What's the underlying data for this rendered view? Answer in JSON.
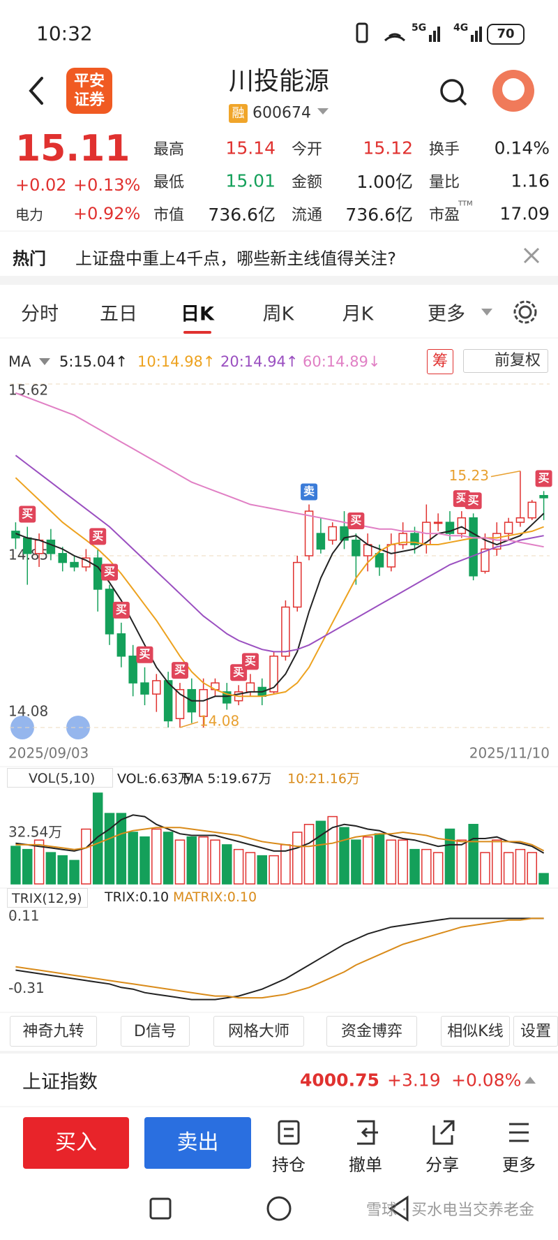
{
  "status_bar": {
    "time": "10:32",
    "signal_5g": "5G",
    "signal_4g": "4G",
    "battery": "70"
  },
  "header": {
    "logo_line1": "平安",
    "logo_line2": "证券",
    "title": "川投能源",
    "tag": "融",
    "code": "600674"
  },
  "quote": {
    "price": "15.11",
    "change": "+0.02",
    "change_pct": "+0.13%",
    "sector": "电力",
    "sector_change": "+0.92%",
    "fields": [
      {
        "label": "最高",
        "value": "15.14",
        "color": "#e0312f"
      },
      {
        "label": "今开",
        "value": "15.12",
        "color": "#e0312f"
      },
      {
        "label": "换手",
        "value": "0.14%"
      },
      {
        "label": "最低",
        "value": "15.01",
        "color": "#14a05a"
      },
      {
        "label": "金额",
        "value": "1.00亿"
      },
      {
        "label": "量比",
        "value": "1.16"
      },
      {
        "label": "市值",
        "value": "736.6亿"
      },
      {
        "label": "流通",
        "value": "736.6亿"
      },
      {
        "label": "市盈",
        "sup": "TTM",
        "value": "17.09"
      }
    ]
  },
  "hot": {
    "tag": "热门",
    "text": "上证盘中重上4千点，哪些新主线值得关注?"
  },
  "tabs": {
    "items": [
      "分时",
      "五日",
      "日K",
      "周K",
      "月K",
      "更多"
    ],
    "active": 2
  },
  "chart_data": [
    {
      "type": "candlestick",
      "legend_title": "MA",
      "chip_button": "筹",
      "adjust_button": "前复权",
      "categories": [
        "2025/09/03",
        null,
        null,
        null,
        null,
        null,
        null,
        null,
        null,
        null,
        null,
        null,
        null,
        null,
        null,
        null,
        null,
        null,
        null,
        null,
        null,
        null,
        null,
        null,
        null,
        null,
        null,
        null,
        null,
        null,
        null,
        null,
        null,
        null,
        null,
        null,
        null,
        null,
        null,
        null,
        null,
        null,
        null,
        null,
        null,
        "2025/11/10"
      ],
      "open": [
        14.96,
        14.93,
        14.86,
        14.92,
        14.86,
        14.82,
        14.8,
        14.84,
        14.7,
        14.5,
        14.4,
        14.28,
        14.23,
        14.29,
        14.12,
        14.25,
        14.13,
        14.25,
        14.24,
        14.2,
        14.24,
        14.26,
        14.24,
        14.4,
        14.62,
        14.85,
        14.95,
        14.92,
        14.98,
        14.92,
        14.85,
        14.86,
        14.8,
        14.9,
        14.95,
        14.9,
        15.0,
        15.0,
        14.95,
        15.02,
        14.78,
        14.88,
        14.95,
        15.0,
        15.02,
        15.12
      ],
      "close": [
        14.93,
        14.86,
        14.92,
        14.86,
        14.82,
        14.8,
        14.84,
        14.7,
        14.5,
        14.4,
        14.28,
        14.23,
        14.29,
        14.11,
        14.25,
        14.15,
        14.25,
        14.28,
        14.19,
        14.24,
        14.28,
        14.22,
        14.4,
        14.62,
        14.82,
        15.05,
        14.88,
        14.98,
        14.92,
        14.85,
        14.9,
        14.8,
        14.9,
        14.95,
        14.9,
        15.0,
        15.0,
        14.95,
        15.02,
        14.76,
        14.88,
        14.95,
        15.0,
        15.02,
        15.09,
        15.11
      ],
      "high": [
        15.0,
        14.98,
        14.95,
        14.97,
        14.89,
        14.85,
        14.88,
        14.88,
        14.72,
        14.55,
        14.45,
        14.35,
        14.32,
        14.33,
        14.28,
        14.3,
        14.3,
        14.3,
        14.28,
        14.27,
        14.32,
        14.3,
        14.42,
        14.65,
        14.85,
        15.08,
        15.02,
        15.0,
        15.05,
        14.95,
        14.95,
        14.9,
        14.95,
        15.0,
        14.98,
        15.08,
        15.04,
        15.05,
        15.05,
        15.04,
        14.95,
        15.0,
        15.02,
        15.23,
        15.1,
        15.14
      ],
      "low": [
        14.88,
        14.72,
        14.8,
        14.83,
        14.78,
        14.78,
        14.78,
        14.6,
        14.45,
        14.35,
        14.22,
        14.18,
        14.15,
        14.08,
        14.08,
        14.1,
        14.08,
        14.22,
        14.16,
        14.18,
        14.22,
        14.18,
        14.23,
        14.38,
        14.6,
        14.83,
        14.86,
        14.9,
        14.88,
        14.72,
        14.78,
        14.76,
        14.78,
        14.88,
        14.86,
        14.86,
        14.96,
        14.92,
        14.93,
        14.74,
        14.77,
        14.85,
        14.92,
        14.98,
        15.01,
        15.01
      ],
      "up_color": "#e0312f",
      "down_color": "#14a05a",
      "ylim": [
        14.08,
        15.62
      ],
      "yticks": [
        15.62,
        14.85,
        14.08
      ],
      "grid": true,
      "series": [
        {
          "name": "5:15.04↑",
          "color": "#222222",
          "values": [
            14.95,
            14.93,
            14.92,
            14.9,
            14.88,
            14.85,
            14.83,
            14.8,
            14.73,
            14.65,
            14.55,
            14.45,
            14.35,
            14.28,
            14.23,
            14.2,
            14.2,
            14.22,
            14.22,
            14.23,
            14.24,
            14.24,
            14.26,
            14.32,
            14.42,
            14.6,
            14.75,
            14.86,
            14.93,
            14.94,
            14.9,
            14.88,
            14.86,
            14.87,
            14.88,
            14.91,
            14.95,
            14.96,
            14.98,
            14.95,
            14.92,
            14.9,
            14.92,
            14.94,
            14.99,
            15.04
          ]
        },
        {
          "name": "10:14.98↑",
          "color": "#eda21f",
          "values": [
            15.2,
            15.15,
            15.1,
            15.05,
            15.0,
            14.96,
            14.92,
            14.88,
            14.83,
            14.77,
            14.7,
            14.63,
            14.56,
            14.48,
            14.4,
            14.33,
            14.28,
            14.25,
            14.23,
            14.22,
            14.22,
            14.22,
            14.23,
            14.24,
            14.28,
            14.35,
            14.45,
            14.55,
            14.65,
            14.75,
            14.82,
            14.87,
            14.9,
            14.91,
            14.91,
            14.9,
            14.9,
            14.91,
            14.92,
            14.93,
            14.93,
            14.93,
            14.94,
            14.95,
            14.96,
            14.98
          ]
        },
        {
          "name": "20:14.94↑",
          "color": "#9a4fc0",
          "values": [
            15.3,
            15.26,
            15.22,
            15.18,
            15.14,
            15.1,
            15.06,
            15.02,
            14.98,
            14.93,
            14.88,
            14.83,
            14.78,
            14.73,
            14.68,
            14.63,
            14.58,
            14.54,
            14.5,
            14.47,
            14.45,
            14.43,
            14.42,
            14.42,
            14.43,
            14.45,
            14.48,
            14.51,
            14.54,
            14.57,
            14.6,
            14.63,
            14.66,
            14.69,
            14.72,
            14.75,
            14.78,
            14.81,
            14.83,
            14.85,
            14.87,
            14.89,
            14.9,
            14.92,
            14.93,
            14.94
          ]
        },
        {
          "name": "60:14.89↓",
          "color": "#e07fc4",
          "values": [
            15.58,
            15.56,
            15.54,
            15.52,
            15.5,
            15.48,
            15.45,
            15.42,
            15.39,
            15.36,
            15.33,
            15.3,
            15.27,
            15.24,
            15.21,
            15.18,
            15.16,
            15.14,
            15.12,
            15.1,
            15.08,
            15.07,
            15.06,
            15.05,
            15.04,
            15.03,
            15.02,
            15.01,
            15.0,
            14.99,
            14.98,
            14.97,
            14.97,
            14.96,
            14.96,
            14.95,
            14.95,
            14.94,
            14.94,
            14.93,
            14.93,
            14.92,
            14.92,
            14.91,
            14.9,
            14.89
          ]
        }
      ],
      "signals": [
        {
          "index": 1,
          "label": "买",
          "color": "#e0455a"
        },
        {
          "index": 7,
          "label": "买",
          "color": "#e0455a"
        },
        {
          "index": 8,
          "label": "买",
          "color": "#e0455a"
        },
        {
          "index": 9,
          "label": "买",
          "color": "#e0455a"
        },
        {
          "index": 11,
          "label": "买",
          "color": "#e0455a"
        },
        {
          "index": 14,
          "label": "买",
          "color": "#e0455a"
        },
        {
          "index": 19,
          "label": "买",
          "color": "#e0455a"
        },
        {
          "index": 20,
          "label": "买",
          "color": "#e0455a"
        },
        {
          "index": 25,
          "label": "卖",
          "color": "#3a7bd8"
        },
        {
          "index": 29,
          "label": "买",
          "color": "#e0455a"
        },
        {
          "index": 38,
          "label": "买",
          "color": "#e0455a"
        },
        {
          "index": 39,
          "label": "买",
          "color": "#e0455a"
        },
        {
          "index": 45,
          "label": "买",
          "color": "#e0455a"
        }
      ],
      "annotations": [
        {
          "index": 43,
          "text": "15.23",
          "side": "left",
          "color": "#e8a030"
        },
        {
          "index": 14,
          "text": "14.08",
          "side": "right",
          "color": "#e8a030"
        }
      ]
    },
    {
      "type": "bar",
      "title": "VOL(5,10)",
      "current_label": "VOL:6.63万",
      "values": [
        24,
        22,
        28,
        20,
        18,
        15,
        35,
        58,
        45,
        45,
        33,
        30,
        35,
        33,
        28,
        30,
        30,
        28,
        25,
        22,
        20,
        18,
        18,
        25,
        33,
        38,
        40,
        43,
        36,
        28,
        30,
        32,
        28,
        28,
        22,
        22,
        20,
        35,
        28,
        38,
        20,
        28,
        20,
        22,
        20,
        6.63
      ],
      "ylim": [
        0,
        59.3
      ],
      "yticks": [
        {
          "value": 32.54,
          "label": "32.54万"
        }
      ],
      "series": [
        {
          "name": "MA 5:19.67万",
          "color": "#222222",
          "values": [
            26,
            25,
            24,
            23,
            22,
            21,
            23,
            30,
            35,
            41,
            44,
            43,
            38,
            35,
            32,
            31,
            31,
            31,
            29,
            27,
            25,
            23,
            21,
            21,
            23,
            26,
            31,
            36,
            38,
            37,
            35,
            34,
            31,
            29,
            28,
            26,
            24,
            25,
            25,
            29,
            29,
            30,
            27,
            26,
            24,
            19.67
          ]
        },
        {
          "name": "10:21.16万",
          "color": "#d98b1a",
          "values": [
            25,
            25,
            25,
            24,
            23,
            22,
            23,
            26,
            29,
            32,
            34,
            35,
            36,
            36,
            36,
            35,
            34,
            33,
            32,
            31,
            29,
            27,
            26,
            25,
            24,
            24,
            25,
            26,
            28,
            30,
            31,
            32,
            32,
            33,
            32,
            31,
            29,
            28,
            27,
            27,
            27,
            27,
            27,
            27,
            25,
            21.16
          ]
        }
      ]
    },
    {
      "type": "line",
      "title": "TRIX(12,9)",
      "ylim": [
        -0.4,
        0.15
      ],
      "yticks": [
        0.11,
        -0.31
      ],
      "series": [
        {
          "name": "TRIX:0.10",
          "color": "#222222",
          "values": [
            -0.2,
            -0.21,
            -0.22,
            -0.23,
            -0.24,
            -0.25,
            -0.26,
            -0.27,
            -0.28,
            -0.3,
            -0.31,
            -0.33,
            -0.34,
            -0.35,
            -0.36,
            -0.37,
            -0.37,
            -0.37,
            -0.36,
            -0.35,
            -0.33,
            -0.31,
            -0.28,
            -0.25,
            -0.21,
            -0.17,
            -0.13,
            -0.09,
            -0.05,
            -0.02,
            0.01,
            0.03,
            0.05,
            0.06,
            0.07,
            0.08,
            0.09,
            0.1,
            0.1,
            0.1,
            0.1,
            0.1,
            0.1,
            0.1,
            0.1,
            0.1
          ]
        },
        {
          "name": "MATRIX:0.10",
          "color": "#d98b1a",
          "values": [
            -0.18,
            -0.19,
            -0.2,
            -0.21,
            -0.22,
            -0.23,
            -0.24,
            -0.25,
            -0.26,
            -0.27,
            -0.28,
            -0.29,
            -0.3,
            -0.31,
            -0.32,
            -0.33,
            -0.34,
            -0.35,
            -0.35,
            -0.36,
            -0.36,
            -0.36,
            -0.35,
            -0.34,
            -0.32,
            -0.3,
            -0.27,
            -0.24,
            -0.21,
            -0.17,
            -0.14,
            -0.11,
            -0.08,
            -0.05,
            -0.03,
            -0.01,
            0.01,
            0.03,
            0.05,
            0.06,
            0.07,
            0.08,
            0.09,
            0.09,
            0.1,
            0.1
          ]
        }
      ]
    }
  ],
  "tools": [
    "神奇九转",
    "D信号",
    "网格大师",
    "资金博弈",
    "相似K线",
    "设置"
  ],
  "index": {
    "name": "上证指数",
    "value": "4000.75",
    "change": "+3.19",
    "change_pct": "+0.08%"
  },
  "actions": {
    "buy": "买入",
    "sell": "卖出",
    "items": [
      "持仓",
      "撤单",
      "分享",
      "更多"
    ]
  },
  "watermark": "雪球 · 买水电当交养老金"
}
